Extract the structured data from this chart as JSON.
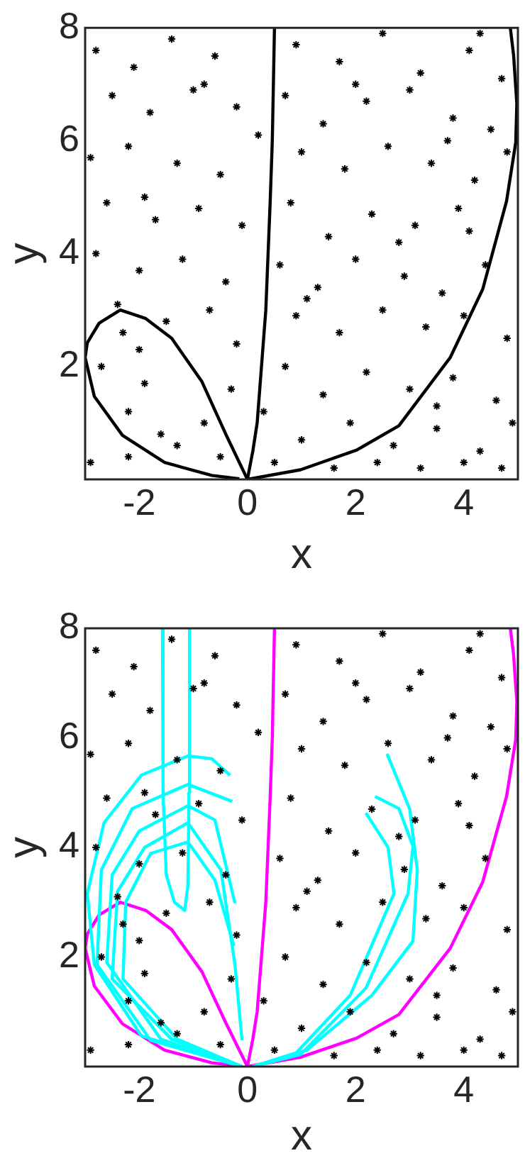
{
  "chart_data": [
    {
      "type": "scatter",
      "xlabel": "x",
      "ylabel": "y",
      "xlim": [
        -3,
        5
      ],
      "ylim": [
        0,
        8
      ],
      "xticks": [
        -2,
        0,
        2,
        4
      ],
      "yticks": [
        2,
        4,
        6,
        8
      ],
      "grid": false,
      "series": [
        {
          "type": "scatter",
          "marker": "cross",
          "color": "#000000",
          "x": [
            -2.8,
            -2.1,
            -1.4,
            -0.6,
            0.9,
            1.7,
            2.5,
            3.2,
            4.1,
            4.7,
            -2.5,
            -1.8,
            -1.0,
            -0.2,
            0.7,
            1.4,
            2.2,
            3.0,
            3.8,
            4.5,
            -2.9,
            -2.2,
            -1.3,
            -0.5,
            1.0,
            1.8,
            2.6,
            3.4,
            4.2,
            4.8,
            -2.6,
            -1.7,
            -0.9,
            -0.1,
            0.8,
            1.5,
            2.3,
            3.1,
            3.9,
            4.1,
            -2.8,
            -2.0,
            -1.2,
            -0.4,
            0.6,
            1.3,
            2.0,
            2.9,
            3.6,
            4.4,
            -2.4,
            -1.5,
            -0.7,
            0.9,
            1.7,
            2.5,
            3.3,
            4.0,
            4.8,
            -0.2,
            -2.7,
            -1.9,
            -2.0,
            -0.3,
            0.7,
            1.4,
            2.2,
            3.0,
            3.8,
            4.6,
            -2.2,
            -1.6,
            -0.8,
            0.3,
            1.0,
            1.9,
            2.7,
            3.5,
            4.3,
            4.9,
            -2.9,
            -2.2,
            -1.3,
            -0.5,
            0.5,
            1.6,
            2.4,
            3.2,
            4.0,
            4.7,
            -1.9,
            0.2,
            1.1,
            2.8,
            3.7,
            -0.8,
            2.0,
            4.3,
            -2.3,
            3.5
          ],
          "values": [
            7.6,
            7.3,
            7.8,
            7.5,
            7.7,
            7.4,
            7.9,
            7.2,
            7.6,
            7.1,
            6.8,
            6.5,
            6.9,
            6.6,
            6.8,
            6.3,
            6.7,
            6.9,
            6.4,
            6.2,
            5.7,
            5.9,
            5.6,
            5.4,
            5.8,
            5.5,
            5.9,
            5.6,
            5.3,
            5.8,
            4.9,
            4.6,
            4.8,
            4.5,
            4.9,
            4.3,
            4.7,
            4.5,
            4.8,
            4.4,
            4.0,
            3.7,
            3.9,
            3.5,
            3.8,
            3.4,
            3.9,
            3.6,
            3.3,
            3.8,
            3.1,
            2.8,
            3.0,
            2.9,
            2.6,
            3.0,
            2.7,
            2.9,
            2.5,
            2.4,
            2.0,
            1.7,
            2.3,
            1.6,
            2.0,
            1.5,
            1.9,
            1.6,
            1.8,
            1.4,
            1.2,
            0.8,
            1.0,
            1.2,
            0.7,
            1.0,
            0.6,
            0.9,
            0.5,
            1.0,
            0.3,
            0.4,
            0.6,
            0.4,
            0.3,
            0.2,
            0.3,
            0.2,
            0.3,
            0.2,
            5.0,
            6.1,
            3.2,
            4.2,
            6.0,
            7.0,
            7.0,
            7.9,
            2.6,
            1.3
          ]
        },
        {
          "type": "line",
          "marker": "none",
          "color": "#000000",
          "x": [
            0,
            -0.4,
            -0.84,
            -1.4,
            -1.88,
            -2.35,
            -2.74,
            -2.96,
            -3,
            -2.83,
            -2.31,
            -1.53,
            -0.66,
            -0.15
          ],
          "values": [
            0,
            0.8,
            1.73,
            2.5,
            2.85,
            3.0,
            2.77,
            2.42,
            2.16,
            1.47,
            0.78,
            0.3,
            0.07,
            0.01
          ]
        },
        {
          "type": "line",
          "marker": "none",
          "color": "#000000",
          "x": [
            0,
            0.1,
            0.18,
            0.26,
            0.34,
            0.42,
            0.46,
            0.5
          ],
          "values": [
            0,
            0.5,
            1,
            2,
            3,
            4.9,
            6,
            8
          ]
        },
        {
          "type": "line",
          "marker": "none",
          "color": "#000000",
          "x": [
            0,
            0.98,
            2.02,
            2.8,
            3.75,
            4.35,
            4.79,
            4.96,
            4.98,
            4.92,
            4.86
          ],
          "values": [
            0,
            0.17,
            0.52,
            0.95,
            2.16,
            3.37,
            4.93,
            5.97,
            6.66,
            7.52,
            8
          ]
        }
      ]
    },
    {
      "type": "scatter",
      "xlabel": "x",
      "ylabel": "y",
      "xlim": [
        -3,
        5
      ],
      "ylim": [
        0,
        8
      ],
      "xticks": [
        -2,
        0,
        2,
        4
      ],
      "yticks": [
        2,
        4,
        6,
        8
      ],
      "grid": false,
      "series": [
        {
          "type": "scatter",
          "marker": "cross",
          "color": "#000000",
          "x": [
            -2.8,
            -2.1,
            -1.4,
            -0.6,
            0.9,
            1.7,
            2.5,
            3.2,
            4.1,
            4.7,
            -2.5,
            -1.8,
            -1.0,
            -0.2,
            0.7,
            1.4,
            2.2,
            3.0,
            3.8,
            4.5,
            -2.9,
            -2.2,
            -1.3,
            -0.5,
            1.0,
            1.8,
            2.6,
            3.4,
            4.2,
            4.8,
            -2.6,
            -1.7,
            -0.9,
            -0.1,
            0.8,
            1.5,
            2.3,
            3.1,
            3.9,
            4.1,
            -2.8,
            -2.0,
            -1.2,
            -0.4,
            0.6,
            1.3,
            2.0,
            2.9,
            3.6,
            4.4,
            -2.4,
            -1.5,
            -0.7,
            0.9,
            1.7,
            2.5,
            3.3,
            4.0,
            4.8,
            -0.2,
            -2.7,
            -1.9,
            -2.0,
            -0.3,
            0.7,
            1.4,
            2.2,
            3.0,
            3.8,
            4.6,
            -2.2,
            -1.6,
            -0.8,
            0.3,
            1.0,
            1.9,
            2.7,
            3.5,
            4.3,
            4.9,
            -2.9,
            -2.2,
            -1.3,
            -0.5,
            0.5,
            1.6,
            2.4,
            3.2,
            4.0,
            4.7,
            -1.9,
            0.2,
            1.1,
            2.8,
            3.7,
            -0.8,
            2.0,
            4.3,
            -2.3,
            3.5
          ],
          "values": [
            7.6,
            7.3,
            7.8,
            7.5,
            7.7,
            7.4,
            7.9,
            7.2,
            7.6,
            7.1,
            6.8,
            6.5,
            6.9,
            6.6,
            6.8,
            6.3,
            6.7,
            6.9,
            6.4,
            6.2,
            5.7,
            5.9,
            5.6,
            5.4,
            5.8,
            5.5,
            5.9,
            5.6,
            5.3,
            5.8,
            4.9,
            4.6,
            4.8,
            4.5,
            4.9,
            4.3,
            4.7,
            4.5,
            4.8,
            4.4,
            4.0,
            3.7,
            3.9,
            3.5,
            3.8,
            3.4,
            3.9,
            3.6,
            3.3,
            3.8,
            3.1,
            2.8,
            3.0,
            2.9,
            2.6,
            3.0,
            2.7,
            2.9,
            2.5,
            2.4,
            2.0,
            1.7,
            2.3,
            1.6,
            2.0,
            1.5,
            1.9,
            1.6,
            1.8,
            1.4,
            1.2,
            0.8,
            1.0,
            1.2,
            0.7,
            1.0,
            0.6,
            0.9,
            0.5,
            1.0,
            0.3,
            0.4,
            0.6,
            0.4,
            0.3,
            0.2,
            0.3,
            0.2,
            0.3,
            0.2,
            5.0,
            6.1,
            3.2,
            4.2,
            6.0,
            7.0,
            7.0,
            7.9,
            2.6,
            1.3
          ]
        },
        {
          "type": "line",
          "marker": "none",
          "color": "#00ffff",
          "x": [
            -0.23,
            -1.96,
            -2.83,
            -2.96,
            -2.65,
            -1.96,
            -1.1,
            -0.66,
            -0.32
          ],
          "values": [
            0.04,
            0.56,
            1.86,
            3.16,
            4.45,
            5.32,
            5.67,
            5.62,
            5.32
          ]
        },
        {
          "type": "line",
          "marker": "none",
          "color": "#00ffff",
          "x": [
            -0.1,
            -1.79,
            -2.78,
            -2.7,
            -2.13,
            -1.1,
            -0.28
          ],
          "values": [
            0,
            0.48,
            1.86,
            3.59,
            4.71,
            5.15,
            4.84
          ]
        },
        {
          "type": "line",
          "marker": "none",
          "color": "#00ffff",
          "x": [
            -0.1,
            -1.6,
            -2.6,
            -2.5,
            -2.0,
            -1.1,
            -0.6,
            -0.23
          ],
          "values": [
            0,
            0.5,
            1.9,
            3.5,
            4.3,
            4.76,
            4.5,
            2.98
          ]
        },
        {
          "type": "line",
          "marker": "none",
          "color": "#00ffff",
          "x": [
            -0.1,
            -1.4,
            -2.5,
            -2.4,
            -1.9,
            -1.1,
            -0.49,
            -0.23,
            -0.1
          ],
          "values": [
            0,
            0.5,
            1.6,
            3.2,
            4.0,
            4.45,
            3.59,
            1.86,
            0.48
          ]
        },
        {
          "type": "line",
          "marker": "none",
          "color": "#00ffff",
          "x": [
            -0.1,
            -1.3,
            -2.3,
            -2.25,
            -1.79,
            -1.1,
            -0.6,
            -0.25
          ],
          "values": [
            0,
            0.5,
            1.6,
            3.0,
            3.89,
            4.1,
            3.4,
            2.2
          ]
        },
        {
          "type": "line",
          "marker": "none",
          "color": "#00ffff",
          "x": [
            -1.57,
            -1.56,
            -1.5,
            -1.35,
            -1.16,
            -1.1,
            -1.08,
            -1.07
          ],
          "values": [
            8,
            5,
            3.5,
            3.0,
            2.85,
            3.3,
            5,
            8
          ]
        },
        {
          "type": "line",
          "marker": "none",
          "color": "#00ffff",
          "x": [
            0.1,
            0.98,
            2.19,
            2.97,
            3.06,
            2.8,
            2.36
          ],
          "values": [
            0,
            0.22,
            1.43,
            3.16,
            4.02,
            4.71,
            4.93
          ]
        },
        {
          "type": "line",
          "marker": "none",
          "color": "#00ffff",
          "x": [
            0.1,
            1.1,
            2.3,
            3.06,
            3.14,
            3.0,
            2.58
          ],
          "values": [
            0,
            0.3,
            1.3,
            2.29,
            3.59,
            4.7,
            5.71
          ]
        },
        {
          "type": "line",
          "marker": "none",
          "color": "#00ffff",
          "x": [
            0.1,
            0.9,
            1.9,
            2.71,
            2.6,
            2.19
          ],
          "values": [
            0,
            0.25,
            1.3,
            3.16,
            4.0,
            4.63
          ]
        },
        {
          "type": "line",
          "marker": "none",
          "color": "#ff00ff",
          "x": [
            0,
            -0.4,
            -0.84,
            -1.4,
            -1.88,
            -2.35,
            -2.74,
            -2.96,
            -3,
            -2.83,
            -2.31,
            -1.53,
            -0.66,
            -0.15
          ],
          "values": [
            0,
            0.8,
            1.73,
            2.5,
            2.85,
            3.0,
            2.77,
            2.42,
            2.16,
            1.47,
            0.78,
            0.3,
            0.07,
            0.01
          ]
        },
        {
          "type": "line",
          "marker": "none",
          "color": "#ff00ff",
          "x": [
            0,
            0.1,
            0.18,
            0.26,
            0.34,
            0.42,
            0.46,
            0.5
          ],
          "values": [
            0,
            0.5,
            1,
            2,
            3,
            4.9,
            6,
            8
          ]
        },
        {
          "type": "line",
          "marker": "none",
          "color": "#ff00ff",
          "x": [
            0,
            0.98,
            2.02,
            2.8,
            3.75,
            4.35,
            4.79,
            4.96,
            4.98,
            4.92,
            4.86
          ],
          "values": [
            0,
            0.17,
            0.52,
            0.95,
            2.16,
            3.37,
            4.93,
            5.97,
            6.66,
            7.52,
            8
          ]
        }
      ]
    }
  ]
}
